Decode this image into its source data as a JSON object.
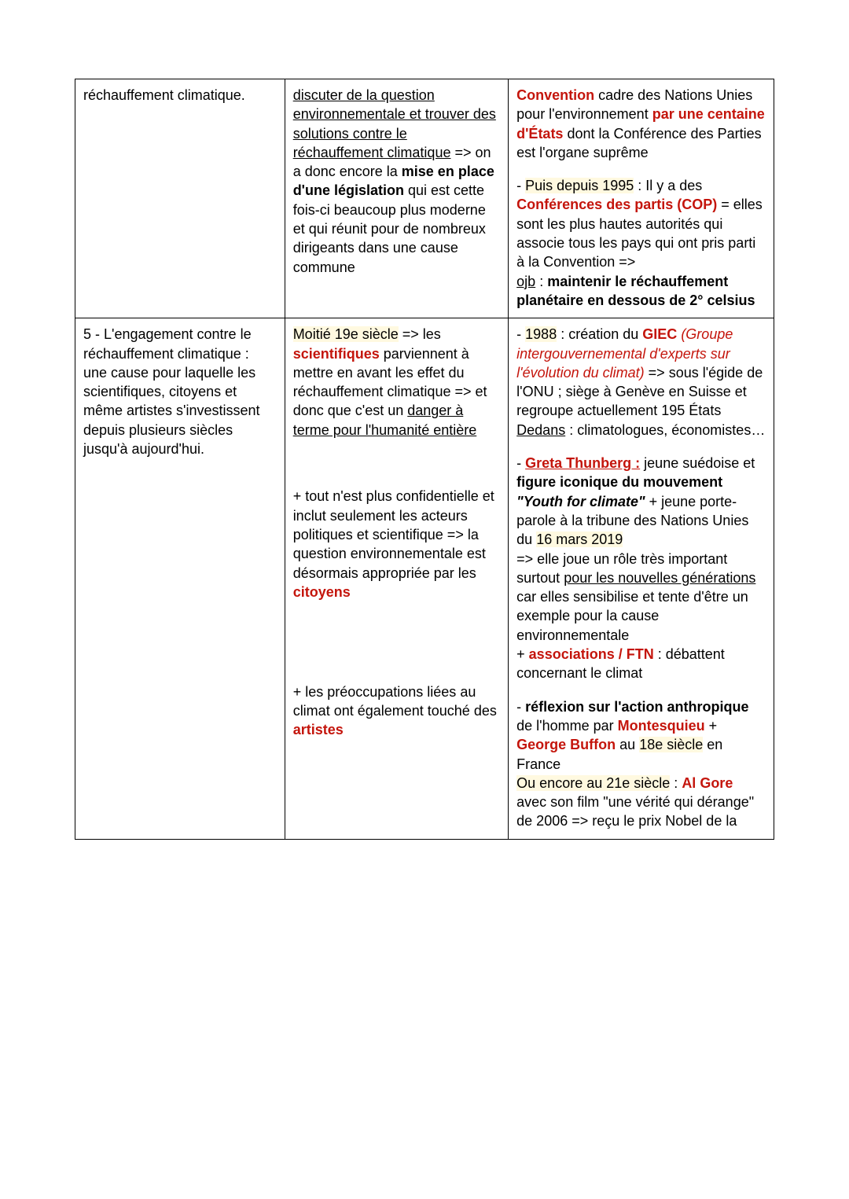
{
  "colors": {
    "text": "#000000",
    "accent_red": "#c4150c",
    "highlight_bg": "#fff9e0",
    "border": "#000000",
    "page_bg": "#ffffff"
  },
  "typography": {
    "font_family": "Arial",
    "base_size_pt": 13,
    "line_height": 1.35
  },
  "table": {
    "column_widths_pct": [
      30,
      32,
      38
    ],
    "rows": [
      {
        "col1": "réchauffement climatique.",
        "col2_html": "<span class='u'>discuter de la question environnementale et trouver des solutions contre le réchauffement climatique</span> =&gt; on a donc encore la <span class='b'>mise en place d'une législation</span> qui est cette fois-ci beaucoup plus moderne et qui réunit pour de nombreux dirigeants dans une cause commune",
        "col3_html": "<p><span class='b red'>Convention</span> cadre des Nations Unies pour l'environnement <span class='b red'>par une centaine d'États</span> dont la Conférence des Parties est l'organe suprême</p><p>- <span class='hl'>Puis depuis 1995</span> : Il y a des <span class='b red'>Conférences des partis (COP)</span> = elles sont les plus hautes autorités qui associe tous les pays qui ont pris parti à la Convention =&gt;<br><span class='u'>ojb</span> : <span class='b'>maintenir le réchauffement planétaire en dessous de 2° celsius</span></p>"
      },
      {
        "col1": "5 - L'engagement contre le réchauffement climatique : une cause pour laquelle les scientifiques, citoyens et même artistes s'investissent depuis plusieurs siècles jusqu'à aujourd'hui.",
        "col2_html": "<p><span class='hl'>Moitié 19e siècle</span> =&gt; les <span class='b red'>scientifiques</span> parviennent à mettre en avant les effet du réchauffement climatique =&gt; et donc que c'est un <span class='u'>danger à terme pour l'humanité entière</span></p><p>&nbsp;</p><p>+ tout n'est plus confidentielle et inclut seulement les acteurs politiques et scientifique =&gt; la question environnementale est désormais appropriée par les <span class='b red'>citoyens</span></p><p>&nbsp;</p><p>&nbsp;</p><p>+ les préoccupations liées au climat ont également touché des <span class='b red'>artistes</span></p>",
        "col3_html": "<p>- <span class='hl'>1988</span> : création du <span class='b red'>GIEC</span> <span class='i red'>(Groupe intergouvernemental d'experts sur l'évolution du climat)</span> =&gt; sous l'égide de l'ONU ; siège à Genève en Suisse et regroupe actuellement 195 États <span class='u'>Dedans</span> : climatologues, économistes…</p><p>- <span class='b red u'>Greta Thunberg :</span> jeune suédoise et <span class='b'>figure iconique du mouvement <span class='i'>\"Youth for climate\"</span></span> + jeune porte-parole à la tribune des Nations Unies du <span class='hl'>16 mars 2019</span><br>=&gt; elle joue un rôle très important surtout <span class='u'>pour les nouvelles générations</span> car elles sensibilise et tente d'être un exemple pour la cause environnementale<br>+ <span class='b red'>associations / FTN</span> : débattent concernant le climat</p><p>- <span class='b'>réflexion sur l'action anthropique</span> de l'homme par <span class='b red'>Montesquieu</span> + <span class='b red'>George Buffon</span> au <span class='hl'>18e siècle</span> en France<br><span class='hl'>Ou encore au 21e siècle</span> : <span class='b red'>Al Gore</span> avec son film \"une vérité qui dérange\" de 2006 =&gt; reçu le prix Nobel de la</p>"
      }
    ]
  }
}
